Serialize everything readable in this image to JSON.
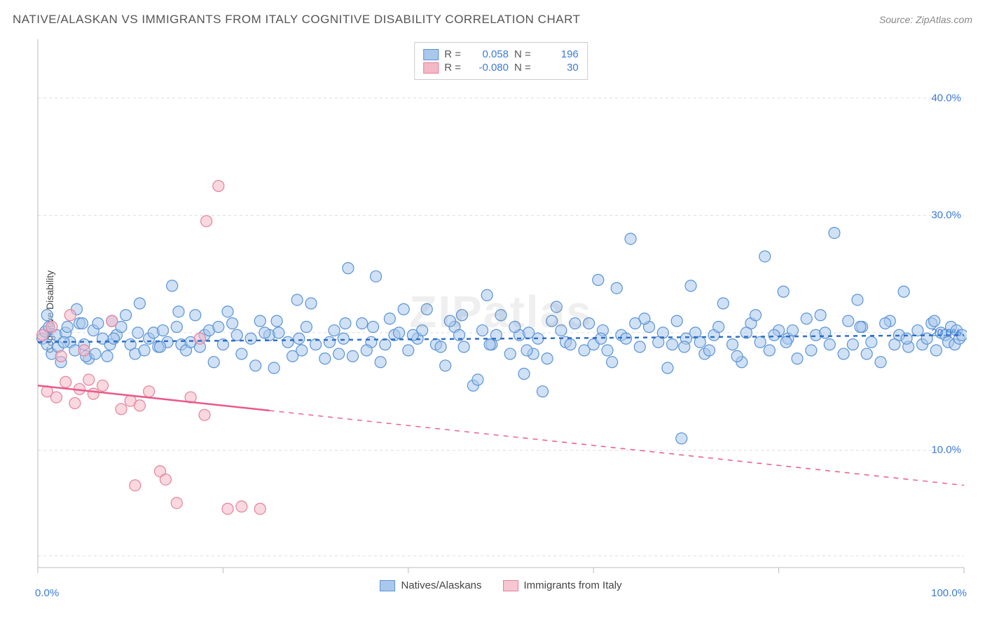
{
  "title": "NATIVE/ALASKAN VS IMMIGRANTS FROM ITALY COGNITIVE DISABILITY CORRELATION CHART",
  "source": "Source: ZipAtlas.com",
  "watermark": "ZIPatlas",
  "y_axis_label": "Cognitive Disability",
  "chart": {
    "type": "scatter",
    "xlim": [
      0,
      100
    ],
    "ylim": [
      0,
      45
    ],
    "x_tick_positions": [
      0,
      20,
      40,
      60,
      80,
      100
    ],
    "y_grid_positions": [
      1,
      10,
      20,
      30,
      40
    ],
    "y_tick_labels": [
      {
        "pos": 10,
        "label": "10.0%"
      },
      {
        "pos": 20,
        "label": "20.0%"
      },
      {
        "pos": 30,
        "label": "30.0%"
      },
      {
        "pos": 40,
        "label": "40.0%"
      }
    ],
    "x_min_label": "0.0%",
    "x_max_label": "100.0%",
    "background_color": "#ffffff",
    "grid_color": "#dddddd",
    "axis_color": "#bbbbbb",
    "marker_radius": 8,
    "marker_stroke_width": 1.2,
    "trend_line_width": 2.5,
    "series": [
      {
        "name": "Natives/Alaskans",
        "fill": "#a9c8ec",
        "fill_opacity": 0.55,
        "stroke": "#5a93d6",
        "r_value": "0.058",
        "n_value": "196",
        "trend_start": {
          "x": 0,
          "y": 19.2
        },
        "trend_end": {
          "x": 100,
          "y": 19.8
        },
        "trend_color": "#2f6fc4",
        "trend_dash_start_x": 0,
        "points": [
          [
            0.5,
            19.5
          ],
          [
            0.8,
            20.1
          ],
          [
            1.0,
            19.0
          ],
          [
            1.2,
            20.5
          ],
          [
            1.5,
            18.2
          ],
          [
            2.0,
            19.8
          ],
          [
            2.5,
            17.5
          ],
          [
            3.0,
            20.0
          ],
          [
            3.5,
            19.2
          ],
          [
            4.0,
            18.5
          ],
          [
            4.5,
            20.8
          ],
          [
            5.0,
            19.0
          ],
          [
            5.5,
            17.8
          ],
          [
            6.0,
            20.2
          ],
          [
            7.0,
            19.5
          ],
          [
            7.5,
            18.0
          ],
          [
            8.0,
            21.0
          ],
          [
            8.5,
            19.8
          ],
          [
            9.0,
            20.5
          ],
          [
            10.0,
            19.0
          ],
          [
            10.5,
            18.2
          ],
          [
            11.0,
            22.5
          ],
          [
            12.0,
            19.5
          ],
          [
            12.5,
            20.0
          ],
          [
            13.0,
            18.8
          ],
          [
            14.0,
            19.2
          ],
          [
            14.5,
            24.0
          ],
          [
            15.0,
            20.5
          ],
          [
            15.5,
            19.0
          ],
          [
            16.0,
            18.5
          ],
          [
            17.0,
            21.5
          ],
          [
            18.0,
            19.8
          ],
          [
            18.5,
            20.2
          ],
          [
            19.0,
            17.5
          ],
          [
            20.0,
            19.0
          ],
          [
            21.0,
            20.8
          ],
          [
            22.0,
            18.2
          ],
          [
            23.0,
            19.5
          ],
          [
            24.0,
            21.0
          ],
          [
            25.0,
            19.8
          ],
          [
            25.5,
            17.0
          ],
          [
            26.0,
            20.0
          ],
          [
            27.0,
            19.2
          ],
          [
            28.0,
            22.8
          ],
          [
            28.5,
            18.5
          ],
          [
            29.0,
            20.5
          ],
          [
            30.0,
            19.0
          ],
          [
            31.0,
            17.8
          ],
          [
            32.0,
            20.2
          ],
          [
            33.0,
            19.5
          ],
          [
            33.5,
            25.5
          ],
          [
            34.0,
            18.0
          ],
          [
            35.0,
            20.8
          ],
          [
            36.0,
            19.2
          ],
          [
            37.0,
            17.5
          ],
          [
            38.0,
            21.2
          ],
          [
            38.5,
            19.8
          ],
          [
            39.0,
            20.0
          ],
          [
            40.0,
            18.5
          ],
          [
            41.0,
            19.5
          ],
          [
            42.0,
            22.0
          ],
          [
            43.0,
            19.0
          ],
          [
            44.0,
            17.2
          ],
          [
            45.0,
            20.5
          ],
          [
            45.5,
            19.8
          ],
          [
            46.0,
            18.8
          ],
          [
            47.0,
            15.5
          ],
          [
            48.0,
            20.2
          ],
          [
            49.0,
            19.0
          ],
          [
            50.0,
            21.5
          ],
          [
            51.0,
            18.2
          ],
          [
            52.0,
            19.8
          ],
          [
            52.5,
            16.5
          ],
          [
            53.0,
            20.0
          ],
          [
            54.0,
            19.5
          ],
          [
            55.0,
            17.8
          ],
          [
            56.0,
            22.2
          ],
          [
            57.0,
            19.2
          ],
          [
            58.0,
            20.8
          ],
          [
            59.0,
            18.5
          ],
          [
            60.0,
            19.0
          ],
          [
            60.5,
            24.5
          ],
          [
            61.0,
            20.2
          ],
          [
            62.0,
            17.5
          ],
          [
            63.0,
            19.8
          ],
          [
            64.0,
            28.0
          ],
          [
            65.0,
            18.8
          ],
          [
            66.0,
            20.5
          ],
          [
            67.0,
            19.2
          ],
          [
            68.0,
            17.0
          ],
          [
            69.0,
            21.0
          ],
          [
            69.5,
            11.0
          ],
          [
            70.0,
            19.5
          ],
          [
            71.0,
            20.0
          ],
          [
            72.0,
            18.2
          ],
          [
            73.0,
            19.8
          ],
          [
            74.0,
            22.5
          ],
          [
            75.0,
            19.0
          ],
          [
            76.0,
            17.5
          ],
          [
            77.0,
            20.8
          ],
          [
            78.0,
            19.2
          ],
          [
            78.5,
            26.5
          ],
          [
            79.0,
            18.5
          ],
          [
            80.0,
            20.2
          ],
          [
            81.0,
            19.5
          ],
          [
            82.0,
            17.8
          ],
          [
            83.0,
            21.2
          ],
          [
            84.0,
            19.8
          ],
          [
            85.0,
            20.0
          ],
          [
            86.0,
            28.5
          ],
          [
            87.0,
            18.2
          ],
          [
            88.0,
            19.0
          ],
          [
            88.5,
            22.8
          ],
          [
            89.0,
            20.5
          ],
          [
            90.0,
            19.2
          ],
          [
            91.0,
            17.5
          ],
          [
            92.0,
            21.0
          ],
          [
            93.0,
            19.8
          ],
          [
            93.5,
            23.5
          ],
          [
            94.0,
            18.8
          ],
          [
            95.0,
            20.2
          ],
          [
            95.5,
            19.0
          ],
          [
            96.0,
            19.5
          ],
          [
            96.5,
            20.8
          ],
          [
            97.0,
            18.5
          ],
          [
            97.5,
            20.0
          ],
          [
            98.0,
            19.8
          ],
          [
            98.3,
            19.2
          ],
          [
            98.6,
            20.5
          ],
          [
            99.0,
            19.0
          ],
          [
            99.2,
            20.2
          ],
          [
            99.5,
            19.5
          ],
          [
            1.0,
            21.5
          ],
          [
            2.2,
            18.8
          ],
          [
            3.2,
            20.5
          ],
          [
            4.2,
            22.0
          ],
          [
            5.2,
            18.0
          ],
          [
            6.5,
            20.8
          ],
          [
            7.8,
            19.0
          ],
          [
            9.5,
            21.5
          ],
          [
            11.5,
            18.5
          ],
          [
            13.5,
            20.2
          ],
          [
            15.2,
            21.8
          ],
          [
            17.5,
            18.8
          ],
          [
            19.5,
            20.5
          ],
          [
            21.5,
            19.8
          ],
          [
            23.5,
            17.2
          ],
          [
            25.8,
            21.0
          ],
          [
            27.5,
            18.0
          ],
          [
            29.5,
            22.5
          ],
          [
            31.5,
            19.2
          ],
          [
            33.2,
            20.8
          ],
          [
            35.5,
            18.5
          ],
          [
            37.5,
            19.0
          ],
          [
            39.5,
            22.0
          ],
          [
            41.5,
            20.2
          ],
          [
            43.5,
            18.8
          ],
          [
            45.8,
            21.5
          ],
          [
            47.5,
            16.0
          ],
          [
            49.5,
            19.8
          ],
          [
            51.5,
            20.5
          ],
          [
            53.5,
            18.2
          ],
          [
            55.5,
            21.0
          ],
          [
            57.5,
            19.0
          ],
          [
            59.5,
            20.8
          ],
          [
            61.5,
            18.5
          ],
          [
            63.5,
            19.5
          ],
          [
            65.5,
            21.2
          ],
          [
            67.5,
            20.0
          ],
          [
            69.8,
            18.8
          ],
          [
            71.5,
            19.2
          ],
          [
            73.5,
            20.5
          ],
          [
            75.5,
            18.0
          ],
          [
            77.5,
            21.5
          ],
          [
            79.5,
            19.8
          ],
          [
            81.5,
            20.2
          ],
          [
            83.5,
            18.5
          ],
          [
            85.5,
            19.0
          ],
          [
            87.5,
            21.0
          ],
          [
            89.5,
            18.2
          ],
          [
            91.5,
            20.8
          ],
          [
            93.8,
            19.5
          ],
          [
            36.5,
            24.8
          ],
          [
            48.5,
            23.2
          ],
          [
            54.5,
            15.0
          ],
          [
            62.5,
            23.8
          ],
          [
            70.5,
            24.0
          ],
          [
            80.5,
            23.5
          ],
          [
            2.8,
            19.2
          ],
          [
            4.8,
            20.8
          ],
          [
            6.2,
            18.2
          ],
          [
            8.2,
            19.5
          ],
          [
            10.8,
            20.0
          ],
          [
            13.2,
            18.8
          ],
          [
            16.5,
            19.2
          ],
          [
            20.5,
            21.8
          ],
          [
            24.5,
            20.0
          ],
          [
            28.2,
            19.5
          ],
          [
            32.5,
            18.2
          ],
          [
            36.2,
            20.5
          ],
          [
            40.5,
            19.8
          ],
          [
            44.5,
            21.0
          ],
          [
            48.8,
            19.0
          ],
          [
            52.8,
            18.5
          ],
          [
            56.5,
            20.2
          ],
          [
            60.8,
            19.5
          ],
          [
            64.5,
            20.8
          ],
          [
            68.5,
            19.0
          ],
          [
            72.5,
            18.5
          ],
          [
            76.5,
            20.0
          ],
          [
            80.8,
            19.2
          ],
          [
            84.5,
            21.5
          ],
          [
            88.8,
            20.5
          ],
          [
            92.5,
            19.0
          ],
          [
            96.8,
            21.0
          ],
          [
            99.8,
            19.8
          ]
        ]
      },
      {
        "name": "Immigrants from Italy",
        "fill": "#f4b8c6",
        "fill_opacity": 0.55,
        "stroke": "#e6809b",
        "r_value": "-0.080",
        "n_value": "30",
        "trend_start": {
          "x": 0,
          "y": 15.5
        },
        "trend_end": {
          "x": 100,
          "y": 7.0
        },
        "trend_color": "#e85a8a",
        "trend_dash_start_x": 25,
        "points": [
          [
            0.5,
            19.8
          ],
          [
            1.0,
            15.0
          ],
          [
            1.5,
            20.5
          ],
          [
            2.0,
            14.5
          ],
          [
            2.5,
            18.0
          ],
          [
            3.0,
            15.8
          ],
          [
            3.5,
            21.5
          ],
          [
            4.0,
            14.0
          ],
          [
            4.5,
            15.2
          ],
          [
            5.0,
            18.5
          ],
          [
            5.5,
            16.0
          ],
          [
            6.0,
            14.8
          ],
          [
            7.0,
            15.5
          ],
          [
            8.0,
            21.0
          ],
          [
            9.0,
            13.5
          ],
          [
            10.0,
            14.2
          ],
          [
            10.5,
            7.0
          ],
          [
            11.0,
            13.8
          ],
          [
            12.0,
            15.0
          ],
          [
            13.2,
            8.2
          ],
          [
            13.8,
            7.5
          ],
          [
            15.0,
            5.5
          ],
          [
            16.5,
            14.5
          ],
          [
            17.5,
            19.5
          ],
          [
            18.2,
            29.5
          ],
          [
            18.0,
            13.0
          ],
          [
            19.5,
            32.5
          ],
          [
            20.5,
            5.0
          ],
          [
            22.0,
            5.2
          ],
          [
            24.0,
            5.0
          ]
        ]
      }
    ]
  },
  "stats_legend_labels": {
    "r": "R =",
    "n": "N ="
  },
  "bottom_legend": [
    {
      "label": "Natives/Alaskans",
      "fill": "#a9c8ec",
      "stroke": "#5a93d6"
    },
    {
      "label": "Immigrants from Italy",
      "fill": "#f6c6d2",
      "stroke": "#e6809b"
    }
  ]
}
